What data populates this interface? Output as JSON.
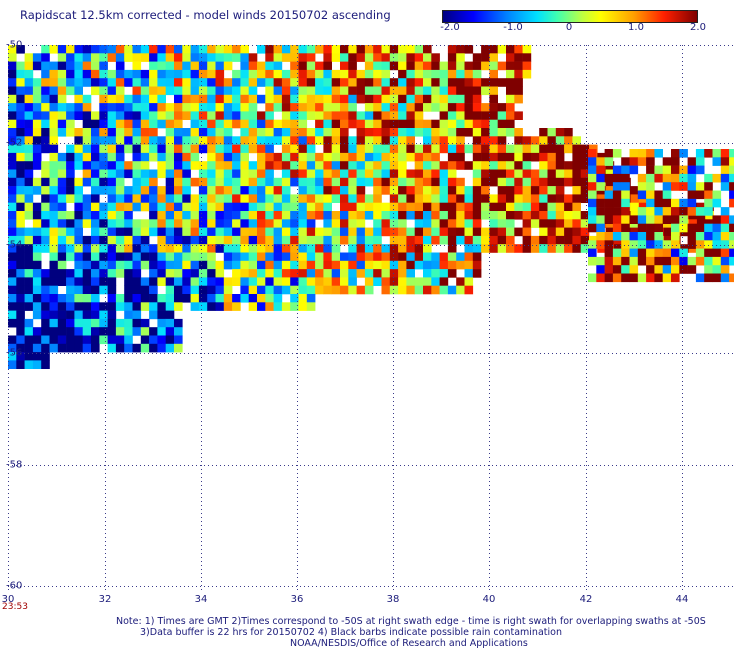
{
  "title": "Rapidscat 12.5km corrected - model winds 20150702 ascending",
  "colorbar": {
    "labels": [
      "-2.0",
      "-1.0",
      "0",
      "1.0",
      "2.0"
    ],
    "range": [
      -2.0,
      2.0
    ]
  },
  "map": {
    "lat_labels": [
      "-50",
      "-52",
      "-54",
      "-56",
      "-58",
      "-60"
    ],
    "lon_labels": [
      "30",
      "32",
      "34",
      "36",
      "38",
      "40",
      "42",
      "44"
    ],
    "lat_range": [
      -60,
      -50
    ],
    "lon_range": [
      30,
      44.5
    ],
    "grid": "dotted"
  },
  "time_label": "23:53",
  "notes": {
    "line1": "Note: 1) Times are GMT 2)Times correspond to -50S at right swath edge - time is right swath for overlapping swaths at -50S",
    "line2": "3)Data buffer is 22 hrs for 20150702 4) Black barbs indicate possible rain contamination",
    "line3": "NOAA/NESDIS/Office of Research and Applications"
  }
}
